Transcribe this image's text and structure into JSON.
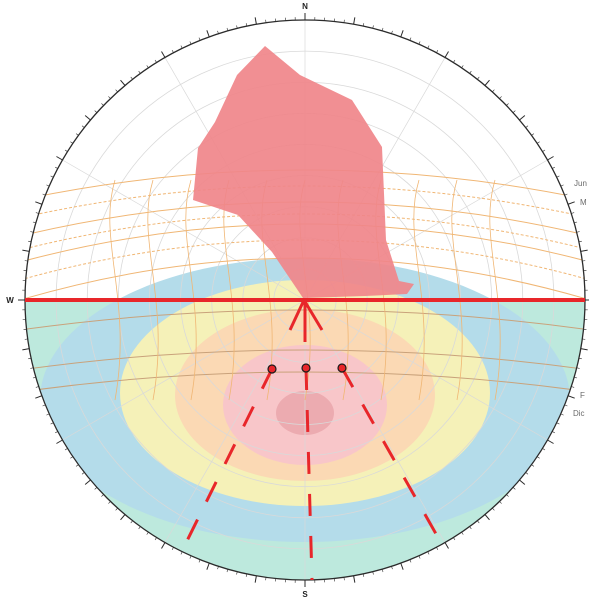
{
  "diagram": {
    "compass": {
      "north": "N",
      "south": "S",
      "west": "W"
    },
    "month_labels": {
      "june": "Jun",
      "may": "M",
      "feb": "F",
      "dec": "Dic"
    },
    "colors": {
      "obstruction_fill": "#f0868a",
      "shading_line": "#e8262a",
      "sun_path": "#f0b674",
      "zone_outer": "#bde9dd",
      "zone_blue": "#b4dcea",
      "zone_yellow": "#f5f1b8",
      "zone_orange": "#fbd9b4",
      "zone_pink": "#f8c6c9",
      "zone_core": "#ecabb0",
      "ring": "#2b2b2b",
      "grid": "#d9d9d9"
    },
    "degree_ticks_step": 10,
    "altitude_rings_step": 10
  }
}
